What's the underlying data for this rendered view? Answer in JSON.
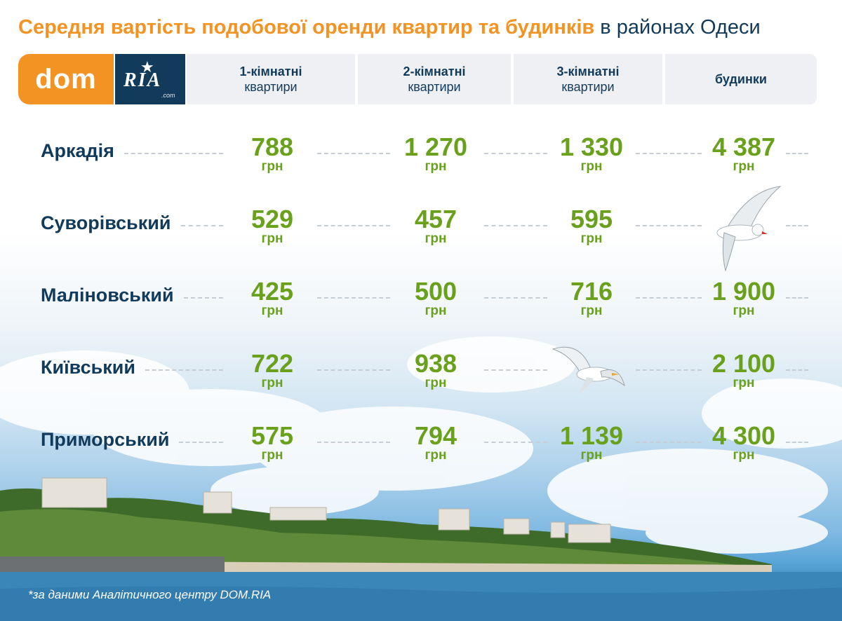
{
  "title": {
    "highlight": "Середня вартість подобової оренди квартир та будинків",
    "rest": "в районах Одеси"
  },
  "logo": {
    "dom": "dom",
    "ria": "RIA",
    "dotcom": ".com"
  },
  "columns": [
    {
      "line1": "1-кімнатні",
      "line2": "квартири"
    },
    {
      "line1": "2-кімнатні",
      "line2": "квартири"
    },
    {
      "line1": "3-кімнатні",
      "line2": "квартири"
    },
    {
      "line1": "будинки",
      "line2": ""
    }
  ],
  "currency": "грн",
  "chart_data": {
    "type": "table",
    "title": "Середня вартість подобової оренди квартир та будинків в районах Одеси",
    "unit": "грн",
    "columns": [
      "1-кімнатні квартири",
      "2-кімнатні квартири",
      "3-кімнатні квартири",
      "будинки"
    ],
    "rows": [
      {
        "district": "Аркадія",
        "values": [
          "788",
          "1 270",
          "1 330",
          "4 387"
        ]
      },
      {
        "district": "Суворівський",
        "values": [
          "529",
          "457",
          "595",
          null
        ]
      },
      {
        "district": "Маліновський",
        "values": [
          "425",
          "500",
          "716",
          "1 900"
        ]
      },
      {
        "district": "Київський",
        "values": [
          "722",
          "938",
          null,
          "2 100"
        ]
      },
      {
        "district": "Приморський",
        "values": [
          "575",
          "794",
          "1 139",
          "4 300"
        ]
      }
    ]
  },
  "footnote": "*за даними Аналітичного центру DOM.RIA",
  "colors": {
    "accent": "#f39324",
    "navy": "#123a5a",
    "value_green": "#69a01c"
  }
}
